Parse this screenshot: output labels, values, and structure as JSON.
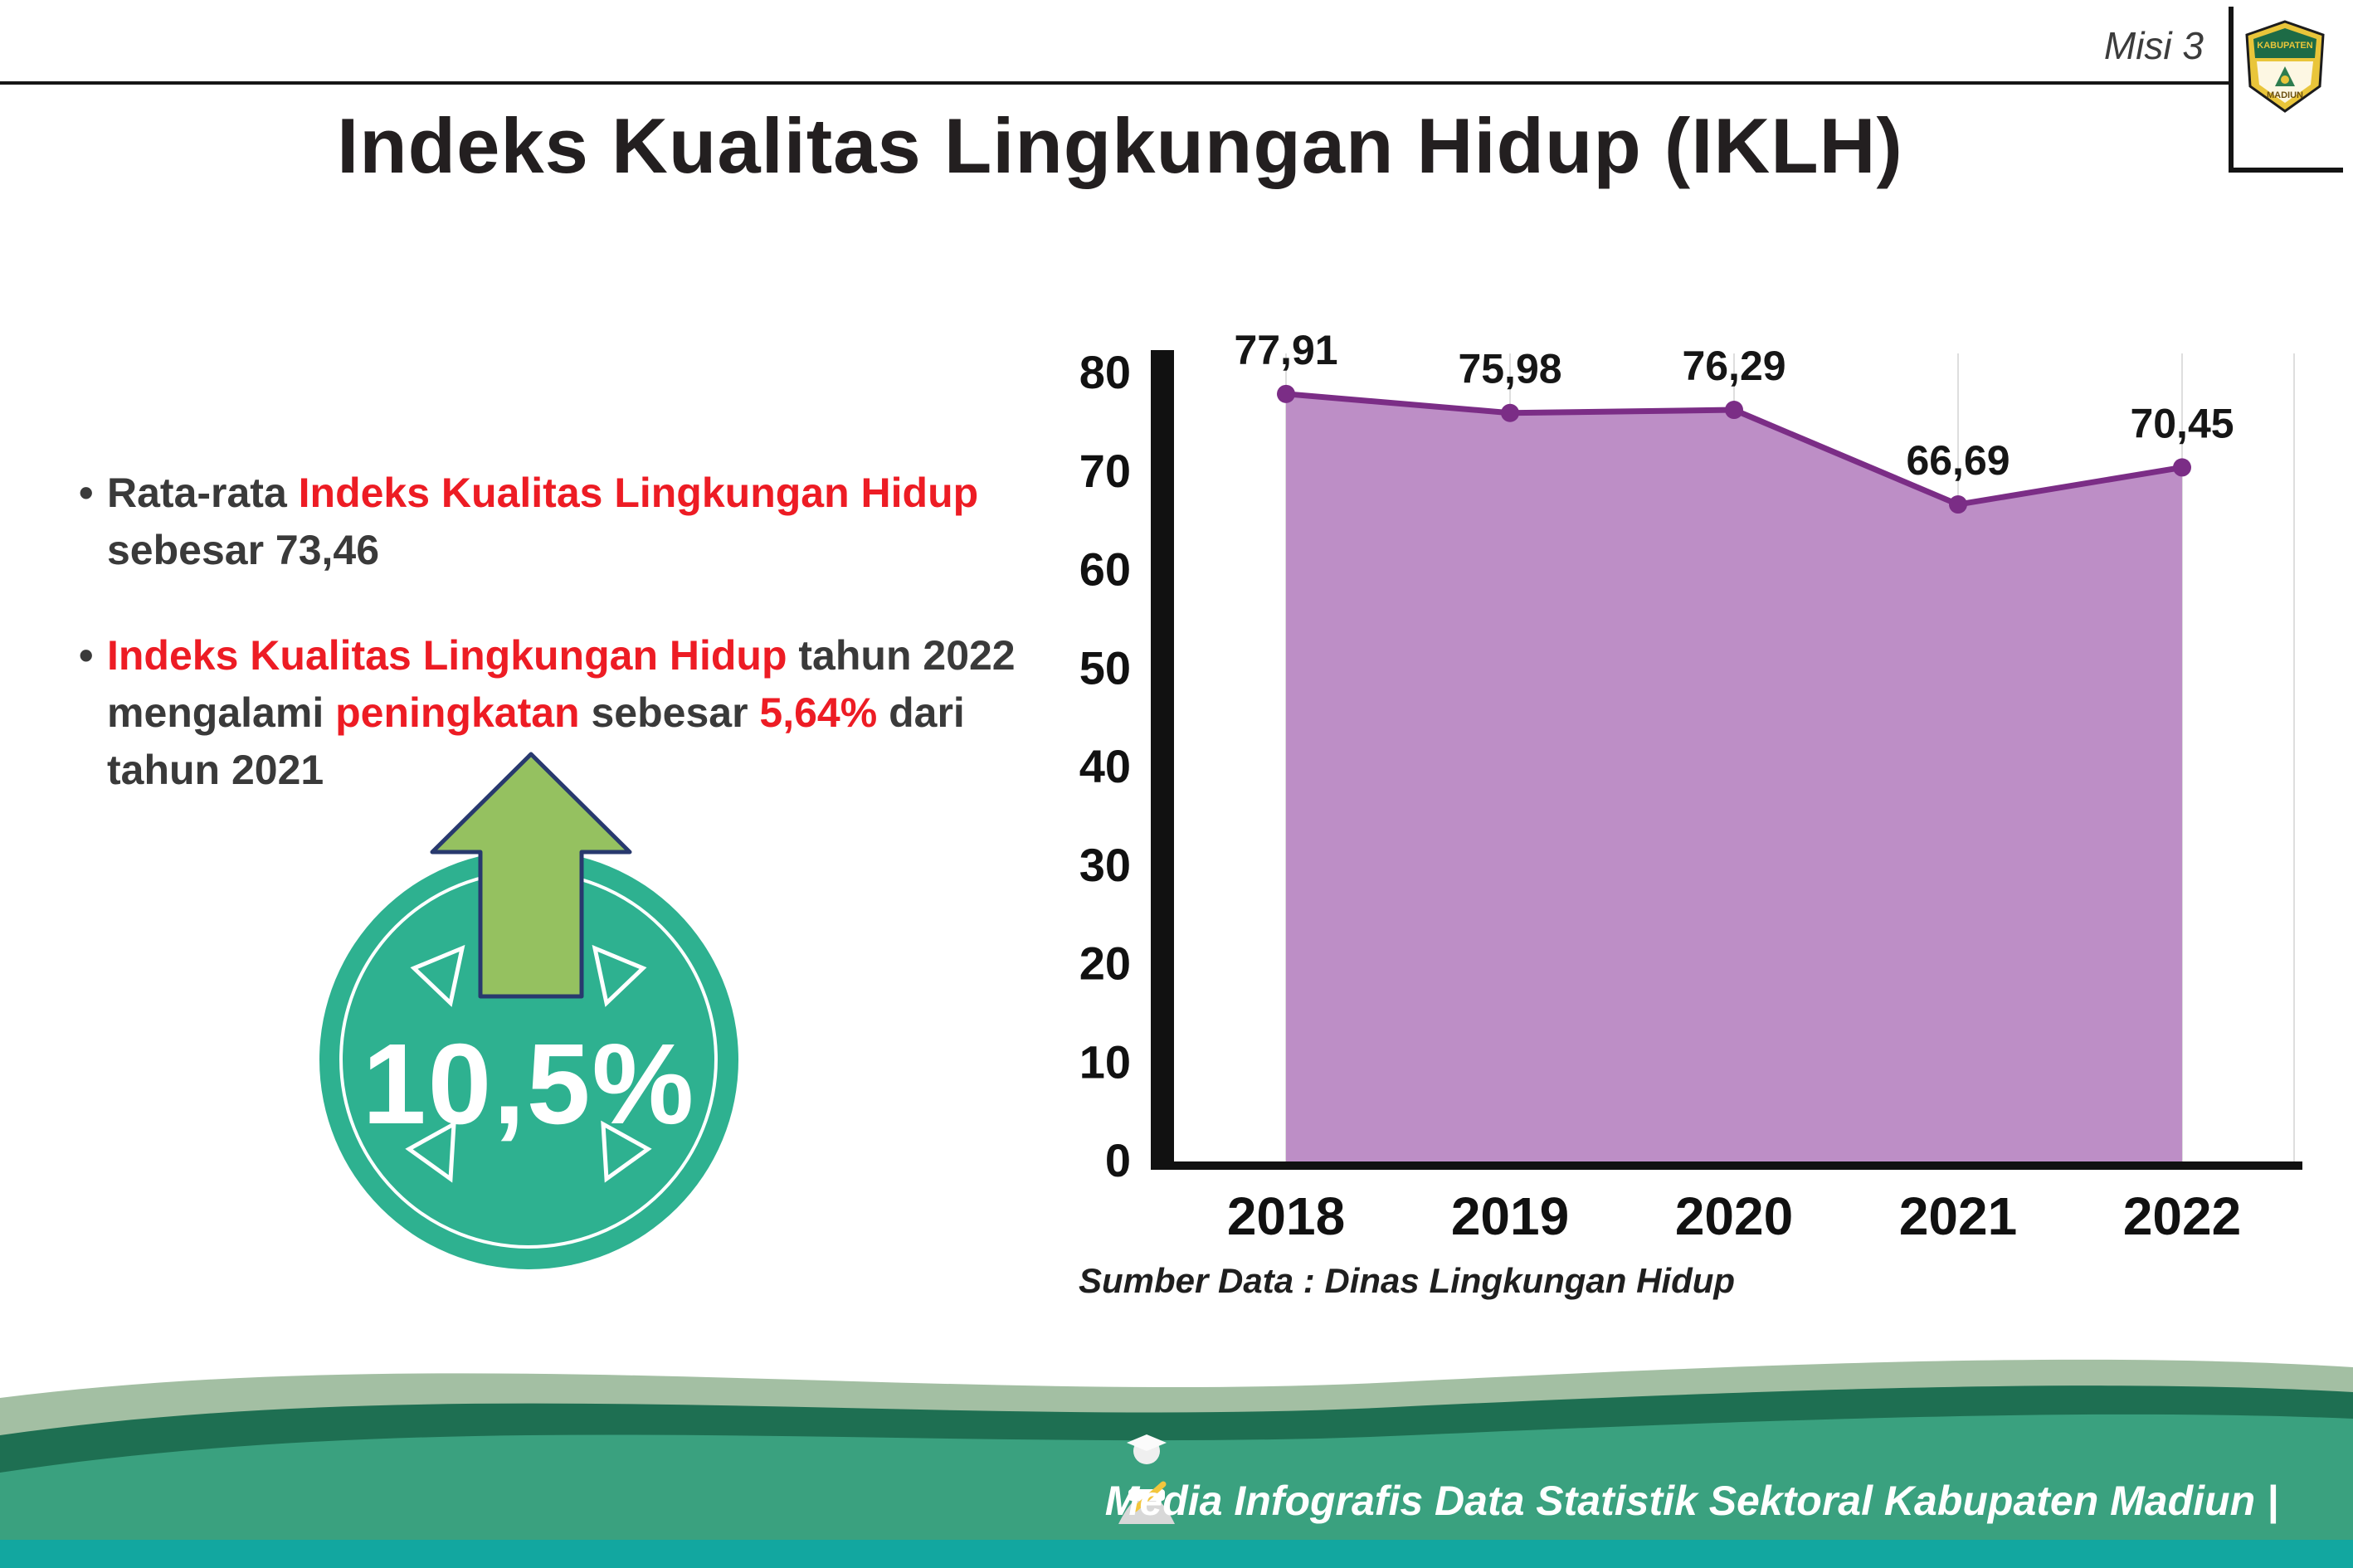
{
  "header": {
    "misi": "Misi 3",
    "title": "Indeks Kualitas Lingkungan Hidup (IKLH)",
    "logo_top": "KABUPATEN",
    "logo_bottom": "MADIUN"
  },
  "bullets": {
    "dot": "•",
    "b1": {
      "p1": "Rata-rata ",
      "p2": "Indeks Kualitas Lingkungan Hidup",
      "p3": " sebesar 73,46"
    },
    "b2": {
      "p1": "Indeks Kualitas Lingkungan Hidup",
      "p2": " tahun 2022 mengalami ",
      "p3": "peningkatan",
      "p4": " sebesar ",
      "p5": "5,64%",
      "p6": " dari tahun 2021"
    }
  },
  "badge": {
    "value": "10,5%"
  },
  "chart_data": {
    "type": "area",
    "title": "Indeks Kualitas Lingkungan Hidup (IKLH)",
    "categories": [
      "2018",
      "2019",
      "2020",
      "2021",
      "2022"
    ],
    "values": [
      77.91,
      75.98,
      76.29,
      66.69,
      70.45
    ],
    "value_labels": [
      "77,91",
      "75,98",
      "76,29",
      "66,69",
      "70,45"
    ],
    "xlabel": "",
    "ylabel": "",
    "ylim": [
      0,
      80
    ],
    "ytick_step": 10,
    "grid": "faint vertical lines",
    "legend": "none",
    "fill_color": "#bd8ec6",
    "line_color": "#7b2d86",
    "source": "Sumber Data : Dinas Lingkungan Hidup"
  },
  "footer": {
    "text": "Media Infografis Data Statistik Sektoral Kabupaten Madiun |"
  }
}
